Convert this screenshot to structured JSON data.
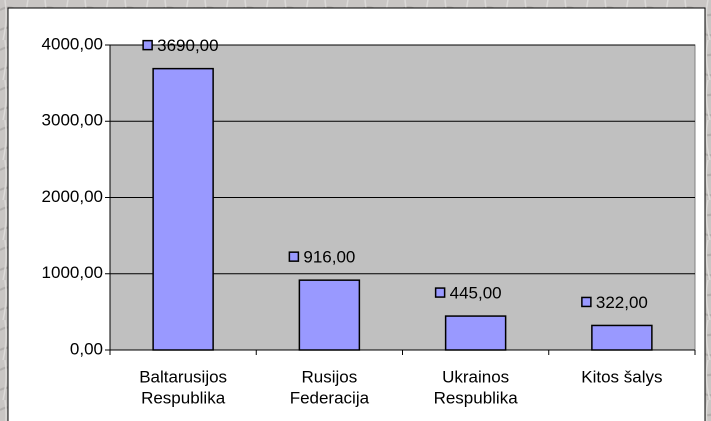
{
  "chart_data": {
    "type": "bar",
    "categories": [
      [
        "Baltarusijos",
        "Respublika"
      ],
      [
        "Rusijos",
        "Federacija"
      ],
      [
        "Ukrainos",
        "Respublika"
      ],
      [
        "Kitos šalys"
      ]
    ],
    "values": [
      3690,
      916,
      445,
      322
    ],
    "value_labels": [
      "3690,00",
      "916,00",
      "445,00",
      "322,00"
    ],
    "color": "#9999ff",
    "ylim": [
      0,
      4000
    ],
    "yticks": [
      {
        "value": 0,
        "label": "0,00"
      },
      {
        "value": 1000,
        "label": "1000,00"
      },
      {
        "value": 2000,
        "label": "2000,00"
      },
      {
        "value": 3000,
        "label": "3000,00"
      },
      {
        "value": 4000,
        "label": "4000,00"
      }
    ],
    "grid": true
  }
}
